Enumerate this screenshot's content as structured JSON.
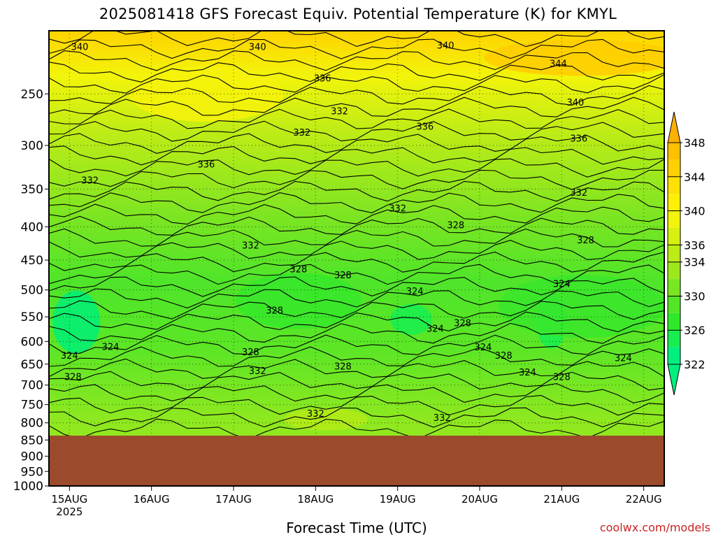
{
  "page": {
    "title": "2025081418 GFS Forecast Equiv. Potential Temperature (K) for KMYL",
    "credit": "coolwx.com/models",
    "colors": {
      "underground": "#9b4a2c",
      "contour_line": "#000000",
      "credit_text": "#cc2222"
    }
  },
  "chart_data": {
    "type": "heatmap",
    "title": "2025081418 GFS Forecast Equiv. Potential Temperature (K) for KMYL",
    "xlabel": "Forecast Time (UTC)",
    "ylabel": "",
    "y_scale": "log",
    "y_inverted": true,
    "y_unit": "hPa",
    "ylim": [
      1000,
      200
    ],
    "x_ticks": [
      {
        "label": "15AUG",
        "sublabel": "2025",
        "t": 0
      },
      {
        "label": "16AUG",
        "t": 24
      },
      {
        "label": "17AUG",
        "t": 48
      },
      {
        "label": "18AUG",
        "t": 72
      },
      {
        "label": "19AUG",
        "t": 96
      },
      {
        "label": "20AUG",
        "t": 120
      },
      {
        "label": "21AUG",
        "t": 144
      },
      {
        "label": "22AUG",
        "t": 168
      }
    ],
    "xlim_hours": [
      -6,
      174
    ],
    "y_ticks": [
      250,
      300,
      350,
      400,
      450,
      500,
      550,
      600,
      650,
      700,
      750,
      800,
      850,
      900,
      950,
      1000
    ],
    "grid": true,
    "underground_below_hpa": 837,
    "contour_interval": 2,
    "colorbar": {
      "levels": [
        322,
        324,
        326,
        328,
        330,
        332,
        334,
        336,
        338,
        340,
        342,
        344,
        346,
        348
      ],
      "tick_labels": [
        322,
        326,
        330,
        334,
        336,
        340,
        344,
        348
      ],
      "colors": [
        "#00f080",
        "#18ee50",
        "#2fe82a",
        "#52e626",
        "#78e622",
        "#9ce81c",
        "#bcec16",
        "#d8f010",
        "#f2f40a",
        "#ffee06",
        "#ffe004",
        "#ffd002",
        "#ffc000",
        "#ffb000"
      ]
    },
    "contour_labels": [
      {
        "v": 340,
        "t": 3,
        "p": 212
      },
      {
        "v": 340,
        "t": 55,
        "p": 212
      },
      {
        "v": 340,
        "t": 110,
        "p": 211
      },
      {
        "v": 344,
        "t": 143,
        "p": 225
      },
      {
        "v": 340,
        "t": 148,
        "p": 258
      },
      {
        "v": 336,
        "t": 74,
        "p": 237
      },
      {
        "v": 332,
        "t": 79,
        "p": 266
      },
      {
        "v": 332,
        "t": 68,
        "p": 287
      },
      {
        "v": 336,
        "t": 104,
        "p": 281
      },
      {
        "v": 336,
        "t": 149,
        "p": 293
      },
      {
        "v": 336,
        "t": 40,
        "p": 321
      },
      {
        "v": 332,
        "t": 6,
        "p": 340
      },
      {
        "v": 332,
        "t": 149,
        "p": 355
      },
      {
        "v": 332,
        "t": 96,
        "p": 375
      },
      {
        "v": 328,
        "t": 113,
        "p": 398
      },
      {
        "v": 328,
        "t": 151,
        "p": 420
      },
      {
        "v": 332,
        "t": 53,
        "p": 428
      },
      {
        "v": 328,
        "t": 67,
        "p": 465
      },
      {
        "v": 328,
        "t": 80,
        "p": 475
      },
      {
        "v": 324,
        "t": 101,
        "p": 503
      },
      {
        "v": 324,
        "t": 144,
        "p": 490
      },
      {
        "v": 328,
        "t": 60,
        "p": 538
      },
      {
        "v": 324,
        "t": 107,
        "p": 574
      },
      {
        "v": 328,
        "t": 115,
        "p": 563
      },
      {
        "v": 324,
        "t": 0,
        "p": 631
      },
      {
        "v": 324,
        "t": 12,
        "p": 612
      },
      {
        "v": 328,
        "t": 53,
        "p": 624
      },
      {
        "v": 324,
        "t": 121,
        "p": 613
      },
      {
        "v": 328,
        "t": 127,
        "p": 631
      },
      {
        "v": 324,
        "t": 162,
        "p": 637
      },
      {
        "v": 328,
        "t": 1,
        "p": 681
      },
      {
        "v": 332,
        "t": 55,
        "p": 667
      },
      {
        "v": 328,
        "t": 80,
        "p": 656
      },
      {
        "v": 324,
        "t": 134,
        "p": 670
      },
      {
        "v": 328,
        "t": 144,
        "p": 681
      },
      {
        "v": 332,
        "t": 72,
        "p": 775
      },
      {
        "v": 332,
        "t": 109,
        "p": 787
      }
    ]
  }
}
